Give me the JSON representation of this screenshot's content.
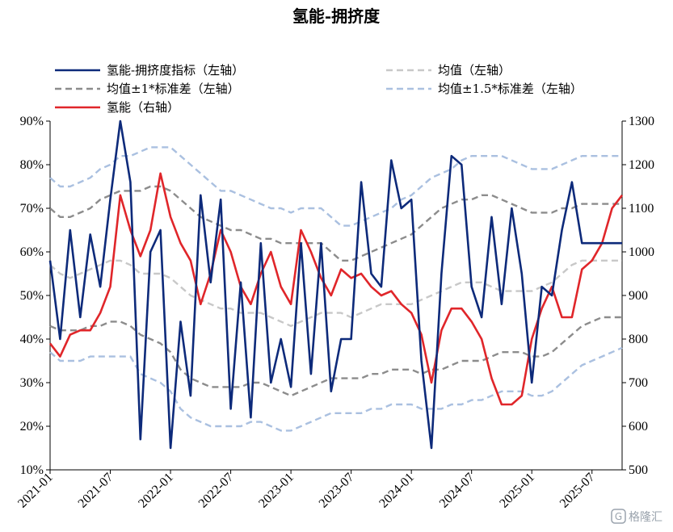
{
  "chart_data": {
    "type": "line",
    "title": "氢能-拥挤度",
    "x": [
      "2021-01",
      "2021-02",
      "2021-03",
      "2021-04",
      "2021-05",
      "2021-06",
      "2021-07",
      "2021-08",
      "2021-09",
      "2021-10",
      "2021-11",
      "2021-12",
      "2022-01",
      "2022-02",
      "2022-03",
      "2022-04",
      "2022-05",
      "2022-06",
      "2022-07",
      "2022-08",
      "2022-09",
      "2022-10",
      "2022-11",
      "2022-12",
      "2023-01",
      "2023-02",
      "2023-03",
      "2023-04",
      "2023-05",
      "2023-06",
      "2023-07",
      "2023-08",
      "2023-09",
      "2023-10",
      "2023-11",
      "2023-12",
      "2024-01",
      "2024-02",
      "2024-03",
      "2024-04",
      "2024-05",
      "2024-06",
      "2024-07",
      "2024-08",
      "2024-09",
      "2024-10",
      "2024-11",
      "2024-12",
      "2025-01",
      "2025-02",
      "2025-03",
      "2025-04",
      "2025-05",
      "2025-06",
      "2025-07",
      "2025-08",
      "2025-09",
      "2025-10"
    ],
    "x_tick_labels": [
      "2021-01",
      "2021-07",
      "2022-01",
      "2022-07",
      "2023-01",
      "2023-07",
      "2024-01",
      "2024-07",
      "2025-01",
      "2025-07"
    ],
    "y_left": {
      "ylim": [
        10,
        90
      ],
      "ticks": [
        "10%",
        "20%",
        "30%",
        "40%",
        "50%",
        "60%",
        "70%",
        "80%",
        "90%"
      ]
    },
    "y_right": {
      "ylim": [
        500,
        1300
      ],
      "ticks": [
        "500",
        "600",
        "700",
        "800",
        "900",
        "1000",
        "1100",
        "1200",
        "1300"
      ]
    },
    "legend_position": "top",
    "series": [
      {
        "name": "氢能-拥挤度指标（左轴）",
        "axis": "left",
        "color": "#0d2a7a",
        "style": "solid",
        "values": [
          58,
          40,
          65,
          45,
          64,
          52,
          72,
          90,
          76,
          17,
          60,
          65,
          15,
          44,
          27,
          73,
          53,
          72,
          24,
          53,
          22,
          62,
          30,
          40,
          29,
          62,
          32,
          62,
          28,
          40,
          40,
          76,
          55,
          52,
          81,
          70,
          72,
          35,
          15,
          55,
          82,
          80,
          52,
          45,
          68,
          48,
          70,
          55,
          30,
          52,
          50,
          65,
          76,
          62,
          62,
          62,
          62,
          62
        ]
      },
      {
        "name": "均值（左轴）",
        "axis": "left",
        "color": "#c8c8c8",
        "style": "dashed",
        "values": [
          57,
          55,
          54,
          55,
          56,
          57,
          58,
          58,
          57,
          55,
          55,
          55,
          54,
          52,
          50,
          49,
          48,
          47,
          47,
          46,
          46,
          46,
          45,
          44,
          43,
          44,
          45,
          46,
          46,
          46,
          45,
          46,
          47,
          48,
          48,
          48,
          48,
          49,
          50,
          51,
          52,
          53,
          53,
          53,
          52,
          51,
          51,
          51,
          51,
          52,
          53,
          55,
          57,
          58,
          58,
          58,
          58,
          58
        ]
      },
      {
        "name": "均值±1*标准差（左轴）",
        "axis": "left",
        "color": "#8c8c8c",
        "style": "dashed",
        "values": [
          70,
          68,
          68,
          69,
          70,
          72,
          73,
          74,
          74,
          74,
          75,
          75,
          74,
          72,
          70,
          68,
          67,
          66,
          65,
          65,
          64,
          63,
          63,
          62,
          62,
          62,
          62,
          62,
          60,
          58,
          58,
          59,
          60,
          61,
          62,
          63,
          64,
          66,
          68,
          70,
          71,
          72,
          72,
          73,
          73,
          72,
          71,
          70,
          69,
          69,
          69,
          70,
          70,
          71,
          71,
          71,
          71,
          71
        ]
      },
      {
        "name": "均值±1*标准差（左轴）",
        "axis": "left",
        "color": "#8c8c8c",
        "style": "dashed",
        "values": [
          43,
          42,
          42,
          42,
          43,
          43,
          44,
          44,
          43,
          41,
          40,
          39,
          37,
          33,
          31,
          30,
          29,
          29,
          29,
          29,
          30,
          30,
          29,
          28,
          27,
          28,
          29,
          30,
          31,
          31,
          31,
          31,
          32,
          32,
          33,
          33,
          33,
          32,
          33,
          33,
          34,
          35,
          35,
          35,
          36,
          37,
          37,
          37,
          36,
          36,
          37,
          39,
          41,
          43,
          44,
          45,
          45,
          45
        ]
      },
      {
        "name": "均值±1.5*标准差（左轴）",
        "axis": "left",
        "color": "#aac0e0",
        "style": "dashed",
        "values": [
          77,
          75,
          75,
          76,
          77,
          79,
          80,
          82,
          82,
          83,
          84,
          84,
          84,
          82,
          80,
          78,
          76,
          74,
          74,
          73,
          72,
          71,
          70,
          70,
          69,
          70,
          70,
          70,
          68,
          66,
          66,
          67,
          68,
          69,
          70,
          72,
          73,
          75,
          77,
          78,
          79,
          81,
          82,
          82,
          82,
          82,
          81,
          80,
          79,
          79,
          79,
          80,
          81,
          82,
          82,
          82,
          82,
          82
        ]
      },
      {
        "name": "均值±1.5*标准差（左轴）",
        "axis": "left",
        "color": "#aac0e0",
        "style": "dashed",
        "values": [
          37,
          35,
          35,
          35,
          36,
          36,
          36,
          36,
          36,
          32,
          31,
          30,
          28,
          24,
          22,
          21,
          20,
          20,
          20,
          20,
          21,
          21,
          20,
          19,
          19,
          20,
          21,
          22,
          23,
          23,
          23,
          23,
          24,
          24,
          25,
          25,
          25,
          24,
          24,
          24,
          25,
          25,
          26,
          26,
          27,
          28,
          28,
          28,
          27,
          27,
          28,
          30,
          32,
          34,
          35,
          36,
          37,
          38
        ]
      },
      {
        "name": "氢能（右轴）",
        "axis": "right",
        "color": "#e0262a",
        "style": "solid",
        "values": [
          790,
          760,
          810,
          820,
          820,
          860,
          920,
          1130,
          1050,
          990,
          1050,
          1180,
          1080,
          1020,
          980,
          880,
          950,
          1050,
          1000,
          920,
          880,
          950,
          1000,
          920,
          880,
          1050,
          1000,
          940,
          900,
          960,
          940,
          950,
          920,
          900,
          910,
          880,
          860,
          810,
          700,
          820,
          870,
          870,
          840,
          800,
          710,
          650,
          650,
          670,
          800,
          870,
          920,
          850,
          850,
          960,
          980,
          1020,
          1100,
          1130
        ]
      }
    ]
  },
  "watermark": {
    "text": "格隆汇"
  }
}
